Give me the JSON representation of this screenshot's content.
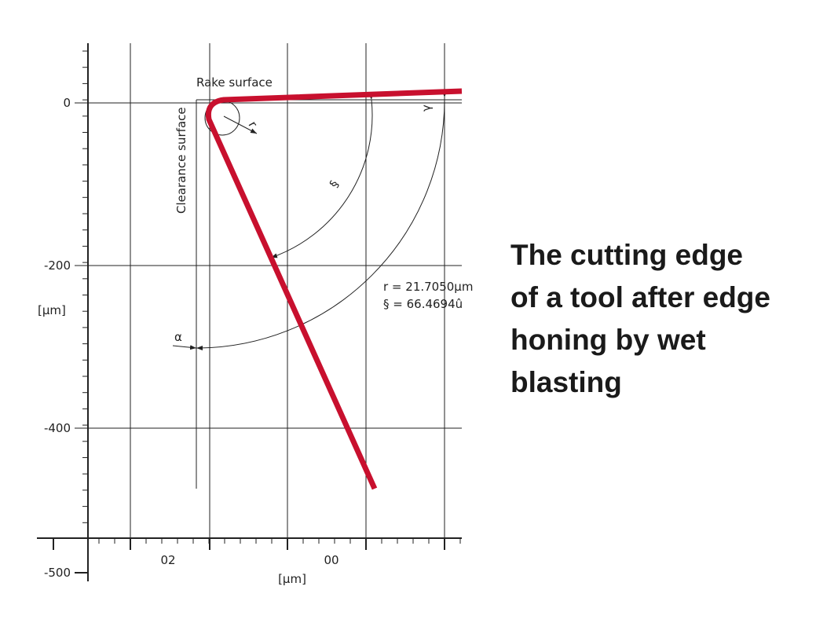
{
  "diagram": {
    "labels": {
      "rake_surface": "Rake surface",
      "clearance_surface": "Clearance surface",
      "radius_symbol": "r",
      "wedge_symbol": "§",
      "rake_angle_symbol": "γ",
      "clearance_angle_symbol": "α"
    },
    "readout": {
      "radius": "r = 21.7050µm",
      "wedge": "§ = 66.4694û"
    },
    "y_axis": {
      "ticks": [
        "0",
        "-200",
        "-400",
        "-500"
      ],
      "unit": "[µm]"
    },
    "x_axis": {
      "ticks": [
        "02",
        "00"
      ],
      "unit": "[µm]"
    }
  },
  "caption": "The cutting edge of a tool after edge honing by wet blasting"
}
